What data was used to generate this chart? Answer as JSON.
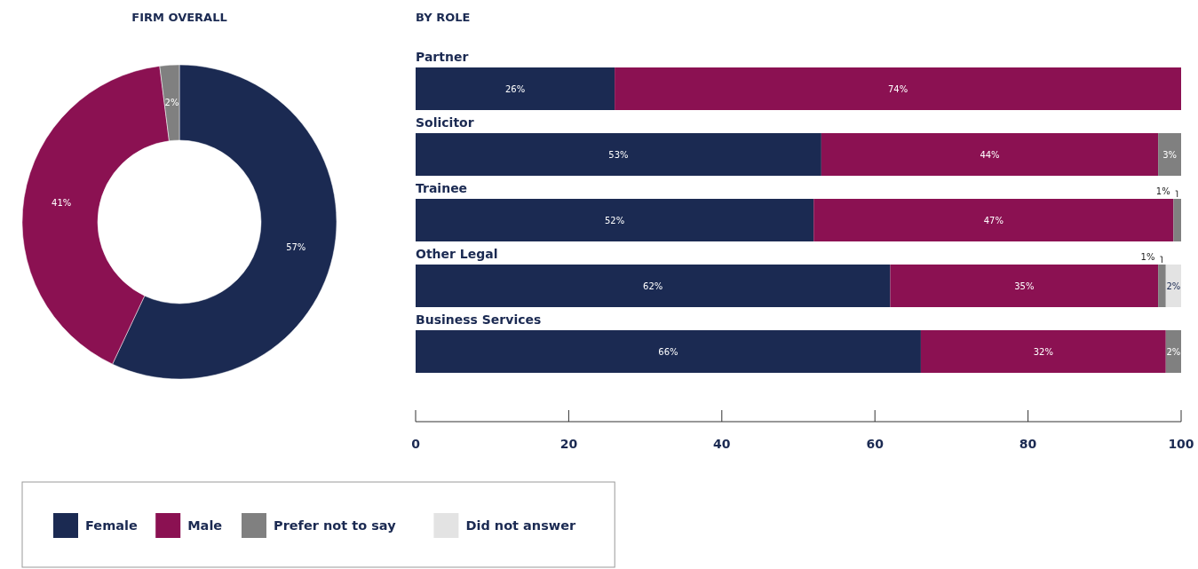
{
  "chart_data": [
    {
      "type": "donut",
      "title": "FIRM OVERALL",
      "categories": [
        "Female",
        "Male",
        "Prefer not to say"
      ],
      "values": [
        57,
        41,
        2
      ],
      "value_labels": [
        "57%",
        "41%",
        "2%"
      ],
      "colors": [
        "#1b2a52",
        "#8b1152",
        "#808080"
      ],
      "legend": "bottom"
    },
    {
      "type": "bar",
      "title": "BY ROLE",
      "orientation": "horizontal",
      "stacked": true,
      "categories": [
        "Partner",
        "Solicitor",
        "Trainee",
        "Other Legal",
        "Business Services"
      ],
      "xlim": [
        0,
        100
      ],
      "xticks": [
        0,
        20,
        40,
        60,
        80,
        100
      ],
      "legend": "bottom",
      "series": [
        {
          "name": "Female",
          "color": "#1b2a52",
          "values": [
            26,
            53,
            52,
            62,
            66
          ],
          "value_labels": [
            "26%",
            "53%",
            "52%",
            "62%",
            "66%"
          ]
        },
        {
          "name": "Male",
          "color": "#8b1152",
          "values": [
            74,
            44,
            47,
            35,
            32
          ],
          "value_labels": [
            "74%",
            "44%",
            "47%",
            "35%",
            "32%"
          ]
        },
        {
          "name": "Prefer not to say",
          "color": "#808080",
          "values": [
            null,
            3,
            1,
            1,
            2
          ],
          "value_labels": [
            null,
            "3%",
            "1%",
            "1%",
            "2%"
          ]
        },
        {
          "name": "Did not answer",
          "color": "#e3e3e3",
          "values": [
            null,
            null,
            null,
            2,
            null
          ],
          "value_labels": [
            null,
            null,
            null,
            "2%",
            null
          ]
        }
      ]
    }
  ]
}
